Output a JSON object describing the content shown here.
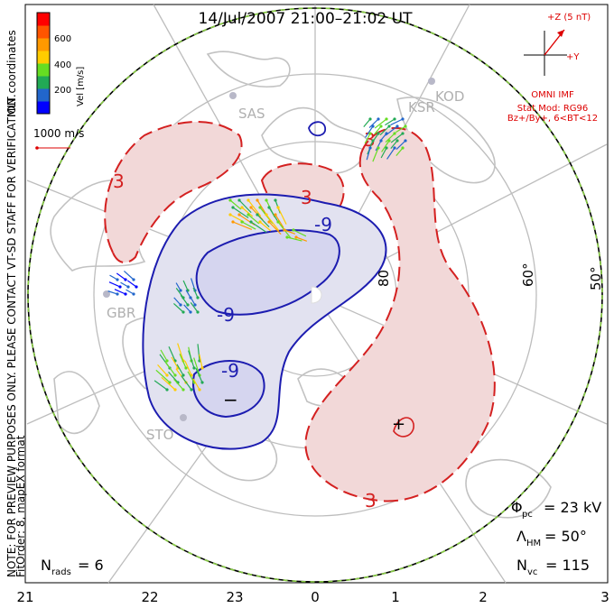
{
  "title": "14/Jul/2007 21:00–21:02 UT",
  "side_note_1": "MLT coordinates",
  "side_note_2": "NOTE: FOR PREVIEW PURPOSES ONLY. PLEASE CONTACT VT-SD STAFF FOR VERIFICATION.",
  "side_note_3": "FitOrder: 8, mapEX format",
  "colorbar": {
    "label": "Vel [m/s]",
    "ticks": [
      "600",
      "400",
      "200"
    ],
    "colors": [
      "#ff0000",
      "#ff5500",
      "#ff9900",
      "#ffcc00",
      "#66dd22",
      "#22aa55",
      "#2266cc",
      "#0000ff"
    ]
  },
  "vector_scale": "1000 m/s",
  "imf": {
    "z_label": "+Z (5 nT)",
    "y_label": "+Y",
    "line1": "OMNI IMF",
    "line2": "Stat Mod: RG96",
    "line3": "Bz+/By+, 6<BT<12"
  },
  "stations": [
    "SAS",
    "KOD",
    "KSR",
    "GBR",
    "STO"
  ],
  "lat_labels": [
    "80",
    "60°",
    "50°"
  ],
  "contour_labels": {
    "neg1": "-9",
    "neg2": "-9",
    "neg3": "-9",
    "pos1": "3",
    "pos2": "3",
    "pos3": "3",
    "pos4": "3"
  },
  "extrema": {
    "min": "−",
    "max": "+"
  },
  "mlt_labels": [
    "21",
    "22",
    "23",
    "0",
    "1",
    "2",
    "3"
  ],
  "stats": {
    "phi_label": "Φ",
    "phi_sub": "pc",
    "phi_value": "= 23 kV",
    "lambda_label": "Λ",
    "lambda_sub": "HM",
    "lambda_value": "= 50°",
    "nvc_label": "N",
    "nvc_sub": "vc",
    "nvc_value": "= 115",
    "nrads_label": "N",
    "nrads_sub": "rads",
    "nrads_value": "= 6"
  }
}
